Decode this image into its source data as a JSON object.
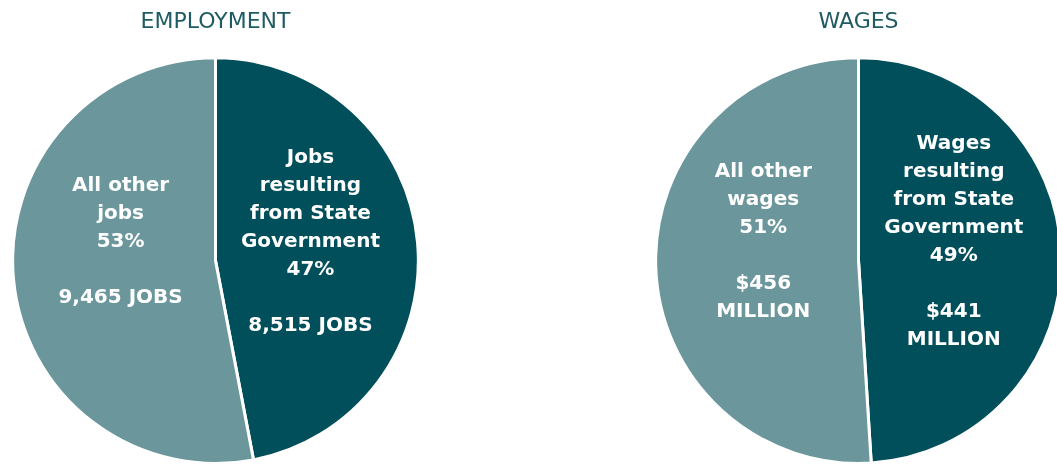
{
  "chart_data": [
    {
      "type": "pie",
      "title": "EMPLOYMENT",
      "categories": [
        "Jobs resulting from State Government",
        "All other jobs"
      ],
      "values": [
        47,
        53
      ],
      "colors": [
        "#014f5a",
        "#6b979c"
      ],
      "value_labels": [
        "47%",
        "53%"
      ],
      "annotations": [
        "8,515 JOBS",
        "9,465 JOBS"
      ]
    },
    {
      "type": "pie",
      "title": "WAGES",
      "categories": [
        "Wages resulting from State Government",
        "All other wages"
      ],
      "values": [
        49,
        51
      ],
      "colors": [
        "#014f5a",
        "#6b979c"
      ],
      "value_labels": [
        "49%",
        "51%"
      ],
      "annotations": [
        "$441 MILLION",
        "$456 MILLION"
      ]
    }
  ]
}
